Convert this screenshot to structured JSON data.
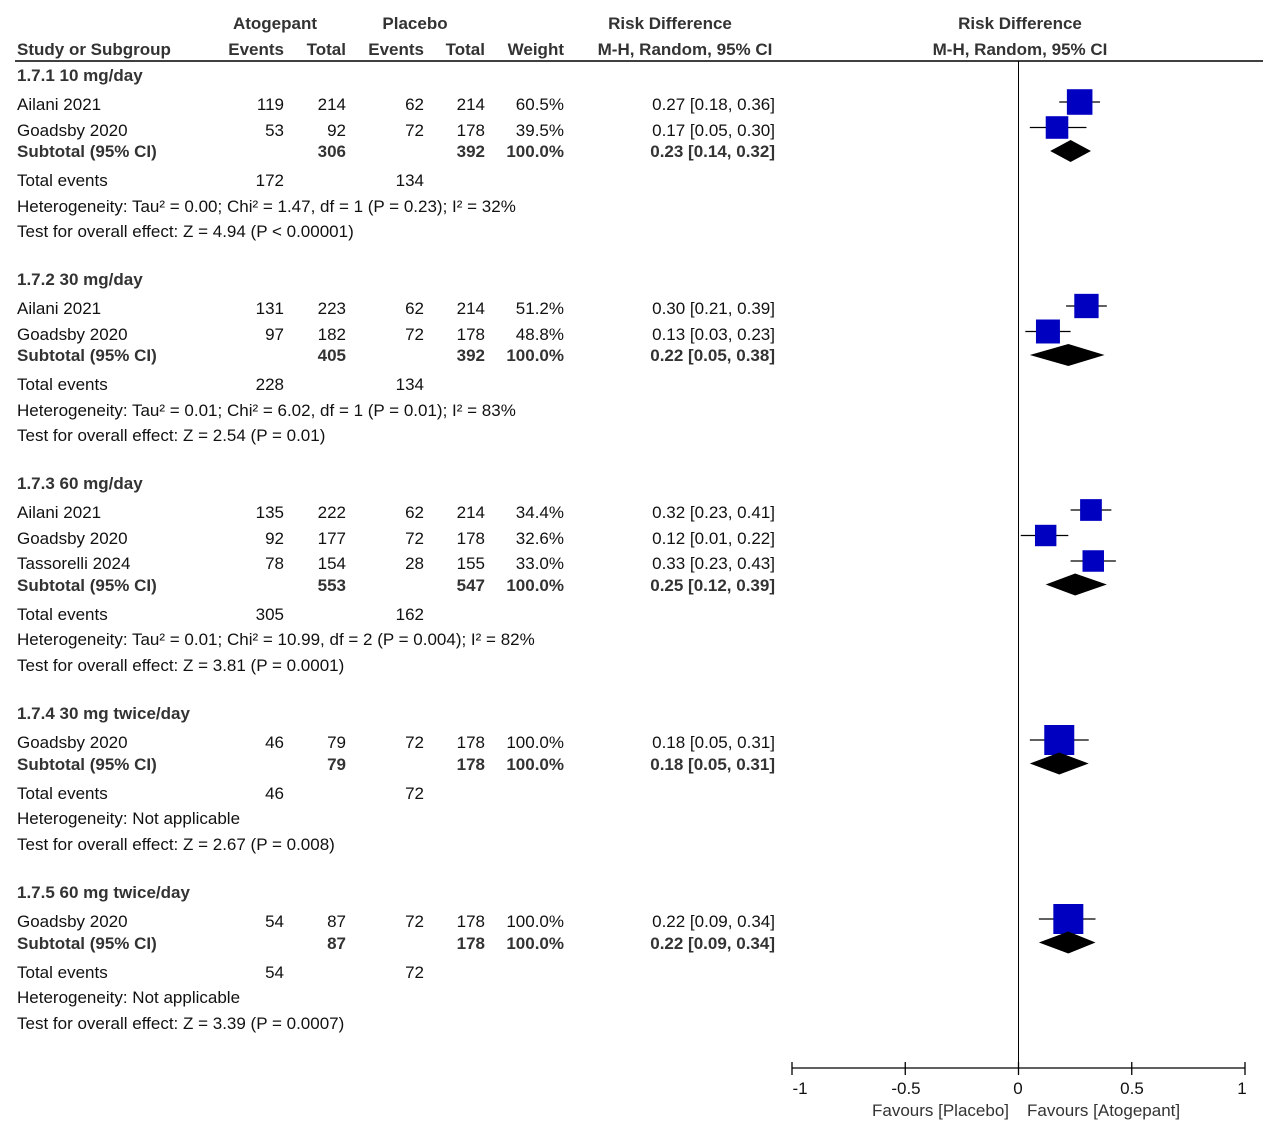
{
  "headers": {
    "group1": "Atogepant",
    "group2": "Placebo",
    "study": "Study or Subgroup",
    "events": "Events",
    "total": "Total",
    "weight": "Weight",
    "rd_title": "Risk Difference",
    "rd_method": "M-H, Random, 95% CI"
  },
  "subgroups": [
    {
      "title": "1.7.1 10 mg/day",
      "studies": [
        {
          "name": "Ailani 2021",
          "e1": "119",
          "n1": "214",
          "e2": "62",
          "n2": "214",
          "weight": "60.5%",
          "ci": "0.27 [0.18, 0.36]"
        },
        {
          "name": "Goadsby 2020",
          "e1": "53",
          "n1": "92",
          "e2": "72",
          "n2": "178",
          "weight": "39.5%",
          "ci": "0.17 [0.05, 0.30]"
        }
      ],
      "subtotal": {
        "label": "Subtotal (95% CI)",
        "n1": "306",
        "n2": "392",
        "weight": "100.0%",
        "ci": "0.23 [0.14, 0.32]"
      },
      "total_events": {
        "label": "Total events",
        "e1": "172",
        "e2": "134"
      },
      "heterogeneity": "Heterogeneity: Tau² = 0.00; Chi² = 1.47, df = 1 (P = 0.23); I² = 32%",
      "overall": "Test for overall effect: Z = 4.94 (P < 0.00001)"
    },
    {
      "title": "1.7.2 30 mg/day",
      "studies": [
        {
          "name": "Ailani 2021",
          "e1": "131",
          "n1": "223",
          "e2": "62",
          "n2": "214",
          "weight": "51.2%",
          "ci": "0.30 [0.21, 0.39]"
        },
        {
          "name": "Goadsby 2020",
          "e1": "97",
          "n1": "182",
          "e2": "72",
          "n2": "178",
          "weight": "48.8%",
          "ci": "0.13 [0.03, 0.23]"
        }
      ],
      "subtotal": {
        "label": "Subtotal (95% CI)",
        "n1": "405",
        "n2": "392",
        "weight": "100.0%",
        "ci": "0.22 [0.05, 0.38]"
      },
      "total_events": {
        "label": "Total events",
        "e1": "228",
        "e2": "134"
      },
      "heterogeneity": "Heterogeneity: Tau² = 0.01; Chi² = 6.02, df = 1 (P = 0.01); I² = 83%",
      "overall": "Test for overall effect: Z = 2.54 (P = 0.01)"
    },
    {
      "title": "1.7.3 60 mg/day",
      "studies": [
        {
          "name": "Ailani 2021",
          "e1": "135",
          "n1": "222",
          "e2": "62",
          "n2": "214",
          "weight": "34.4%",
          "ci": "0.32 [0.23, 0.41]"
        },
        {
          "name": "Goadsby 2020",
          "e1": "92",
          "n1": "177",
          "e2": "72",
          "n2": "178",
          "weight": "32.6%",
          "ci": "0.12 [0.01, 0.22]"
        },
        {
          "name": "Tassorelli 2024",
          "e1": "78",
          "n1": "154",
          "e2": "28",
          "n2": "155",
          "weight": "33.0%",
          "ci": "0.33 [0.23, 0.43]"
        }
      ],
      "subtotal": {
        "label": "Subtotal (95% CI)",
        "n1": "553",
        "n2": "547",
        "weight": "100.0%",
        "ci": "0.25 [0.12, 0.39]"
      },
      "total_events": {
        "label": "Total events",
        "e1": "305",
        "e2": "162"
      },
      "heterogeneity": "Heterogeneity: Tau² = 0.01; Chi² = 10.99, df = 2 (P = 0.004); I² = 82%",
      "overall": "Test for overall effect: Z = 3.81 (P = 0.0001)"
    },
    {
      "title": "1.7.4 30 mg twice/day",
      "studies": [
        {
          "name": "Goadsby 2020",
          "e1": "46",
          "n1": "79",
          "e2": "72",
          "n2": "178",
          "weight": "100.0%",
          "ci": "0.18 [0.05, 0.31]"
        }
      ],
      "subtotal": {
        "label": "Subtotal (95% CI)",
        "n1": "79",
        "n2": "178",
        "weight": "100.0%",
        "ci": "0.18 [0.05, 0.31]"
      },
      "total_events": {
        "label": "Total events",
        "e1": "46",
        "e2": "72"
      },
      "heterogeneity": "Heterogeneity: Not applicable",
      "overall": "Test for overall effect: Z = 2.67 (P = 0.008)"
    },
    {
      "title": "1.7.5 60 mg twice/day",
      "studies": [
        {
          "name": "Goadsby 2020",
          "e1": "54",
          "n1": "87",
          "e2": "72",
          "n2": "178",
          "weight": "100.0%",
          "ci": "0.22 [0.09, 0.34]"
        }
      ],
      "subtotal": {
        "label": "Subtotal (95% CI)",
        "n1": "87",
        "n2": "178",
        "weight": "100.0%",
        "ci": "0.22 [0.09, 0.34]"
      },
      "total_events": {
        "label": "Total events",
        "e1": "54",
        "e2": "72"
      },
      "heterogeneity": "Heterogeneity: Not applicable",
      "overall": "Test for overall effect: Z = 3.39 (P = 0.0007)"
    }
  ],
  "axis": {
    "ticks": [
      "-1",
      "-0.5",
      "0",
      "0.5",
      "1"
    ],
    "favours_left": "Favours [Placebo]",
    "favours_right": "Favours [Atogepant]"
  },
  "chart_data": {
    "type": "forest",
    "xlim": [
      -1,
      1
    ],
    "ticks": [
      -1,
      -0.5,
      0,
      0.5,
      1
    ],
    "reference_line": 0,
    "marker_color": "#0000c0",
    "diamond_color": "#000000",
    "subgroups": [
      {
        "studies": [
          {
            "est": 0.27,
            "lo": 0.18,
            "hi": 0.36,
            "weight": 60.5
          },
          {
            "est": 0.17,
            "lo": 0.05,
            "hi": 0.3,
            "weight": 39.5
          }
        ],
        "subtotal": {
          "est": 0.23,
          "lo": 0.14,
          "hi": 0.32
        }
      },
      {
        "studies": [
          {
            "est": 0.3,
            "lo": 0.21,
            "hi": 0.39,
            "weight": 51.2
          },
          {
            "est": 0.13,
            "lo": 0.03,
            "hi": 0.23,
            "weight": 48.8
          }
        ],
        "subtotal": {
          "est": 0.22,
          "lo": 0.05,
          "hi": 0.38
        }
      },
      {
        "studies": [
          {
            "est": 0.32,
            "lo": 0.23,
            "hi": 0.41,
            "weight": 34.4
          },
          {
            "est": 0.12,
            "lo": 0.01,
            "hi": 0.22,
            "weight": 32.6
          },
          {
            "est": 0.33,
            "lo": 0.23,
            "hi": 0.43,
            "weight": 33.0
          }
        ],
        "subtotal": {
          "est": 0.25,
          "lo": 0.12,
          "hi": 0.39
        }
      },
      {
        "studies": [
          {
            "est": 0.18,
            "lo": 0.05,
            "hi": 0.31,
            "weight": 100.0
          }
        ],
        "subtotal": {
          "est": 0.18,
          "lo": 0.05,
          "hi": 0.31
        }
      },
      {
        "studies": [
          {
            "est": 0.22,
            "lo": 0.09,
            "hi": 0.34,
            "weight": 100.0
          }
        ],
        "subtotal": {
          "est": 0.22,
          "lo": 0.09,
          "hi": 0.34
        }
      }
    ]
  }
}
